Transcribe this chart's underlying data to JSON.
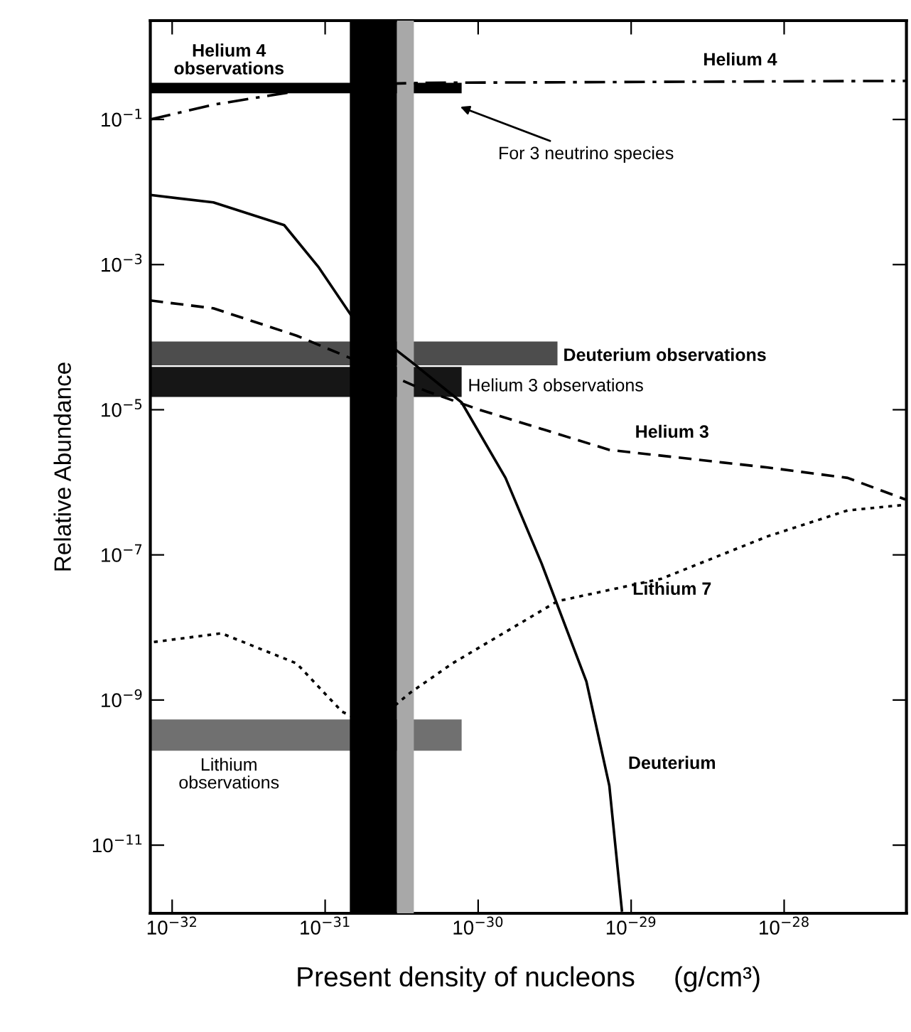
{
  "chart_data": {
    "type": "line",
    "xlabel": "Present density of nucleons     (g/cm³)",
    "ylabel": "Relative Abundance",
    "log": "xy",
    "grid": false,
    "legend": false,
    "xlim": [
      7.2e-33,
      6.3e-28
    ],
    "ylim": [
      1.15e-12,
      2.3
    ],
    "xticks": [
      {
        "value": 1e-32,
        "label": "10$^{−32}$"
      },
      {
        "value": 1e-31,
        "label": "10$^{−31}$"
      },
      {
        "value": 1e-30,
        "label": "10$^{−30}$"
      },
      {
        "value": 1e-29,
        "label": "10$^{−29}$"
      },
      {
        "value": 1e-28,
        "label": "10$^{−28}$"
      }
    ],
    "yticks": [
      {
        "value": 0.1,
        "label": "10$^{−1}$"
      },
      {
        "value": 0.001,
        "label": "10$^{−3}$"
      },
      {
        "value": 1e-05,
        "label": "10$^{−5}$"
      },
      {
        "value": 1e-07,
        "label": "10$^{−7}$"
      },
      {
        "value": 1e-09,
        "label": "10$^{−9}$"
      },
      {
        "value": 1e-11,
        "label": "10$^{−11}$"
      }
    ],
    "bands": [
      {
        "axis": "x",
        "from": 1.45e-31,
        "to": 2.95e-31,
        "color": "#000000"
      },
      {
        "axis": "x",
        "from": 2.95e-31,
        "to": 3.8e-31,
        "color": "#a8a8a8"
      }
    ],
    "series": [
      {
        "color": "#000000",
        "x": [
          7.2e-33,
          7.8e-31
        ],
        "lower": [
          0.23,
          0.23
        ],
        "upper": [
          0.32,
          0.32
        ],
        "values": [
          null,
          null
        ]
      },
      {
        "color": "#4d4d4d",
        "x": [
          7.2e-33,
          3.3e-30
        ],
        "lower": [
          4.1e-05,
          4.1e-05
        ],
        "upper": [
          8.7e-05,
          8.7e-05
        ],
        "values": [
          null,
          null
        ]
      },
      {
        "color": "#161616",
        "x": [
          7.2e-33,
          7.8e-31
        ],
        "lower": [
          1.5e-05,
          1.5e-05
        ],
        "upper": [
          3.9e-05,
          3.9e-05
        ],
        "values": [
          null,
          null
        ]
      },
      {
        "color": "#707070",
        "x": [
          7.2e-33,
          7.8e-31
        ],
        "lower": [
          2e-10,
          2e-10
        ],
        "upper": [
          5.4e-10,
          5.4e-10
        ],
        "values": [
          null,
          null
        ]
      },
      {
        "color": "#000000",
        "line_style": "dashdot",
        "x": [
          7.2e-33,
          1.86e-32,
          5.4e-32,
          1.26e-31,
          4.6e-31,
          6.2e-28
        ],
        "values": [
          0.1,
          0.16,
          0.23,
          0.3,
          0.32,
          0.34
        ]
      },
      {
        "color": "#000000",
        "line_style": "solid",
        "x": [
          7.2e-33,
          1.86e-32,
          5.4e-32,
          9.1e-32,
          1.48e-31,
          3.6e-31,
          7.8e-31,
          1.51e-30,
          2.6e-30,
          5.1e-30,
          7.2e-30,
          8.7e-30
        ],
        "values": [
          0.0091,
          0.0072,
          0.0035,
          0.00091,
          0.0002,
          4.7e-05,
          1.26e-05,
          1.15e-06,
          7.6e-08,
          1.8e-09,
          6.6e-11,
          1.26e-12
        ]
      },
      {
        "color": "#000000",
        "line_style": "dashed",
        "x": [
          7.2e-33,
          1.86e-32,
          6.5e-32,
          1.95e-31,
          4.6e-31,
          1.02e-30,
          7.2e-30,
          7.8e-29,
          2.6e-28,
          6.2e-28
        ],
        "values": [
          0.00032,
          0.00025,
          0.000105,
          4e-05,
          1.8e-05,
          1e-05,
          2.8e-06,
          1.6e-06,
          1.15e-06,
          5.8e-07
        ]
      },
      {
        "color": "#000000",
        "line_style": "dotted",
        "x": [
          7.6e-33,
          2.1e-32,
          6.5e-32,
          1.29e-31,
          2e-31,
          3.6e-31,
          6.8e-31,
          3.3e-30,
          1.58e-29,
          7.8e-29,
          2.6e-28,
          6.2e-28
        ],
        "values": [
          6.3e-09,
          8.3e-09,
          3.2e-09,
          6.9e-10,
          4.5e-10,
          1.26e-09,
          3.2e-09,
          2.3e-08,
          4.7e-08,
          1.8e-07,
          4.1e-07,
          4.9e-07
        ]
      }
    ],
    "annotations": [
      "Helium 4\nobservations",
      "Helium 4",
      "For 3 neutrino species",
      "Deuterium observations",
      "Helium 3 observations",
      "Helium 3",
      "Lithium 7",
      "Lithium\nobservations",
      "Deuterium"
    ]
  }
}
